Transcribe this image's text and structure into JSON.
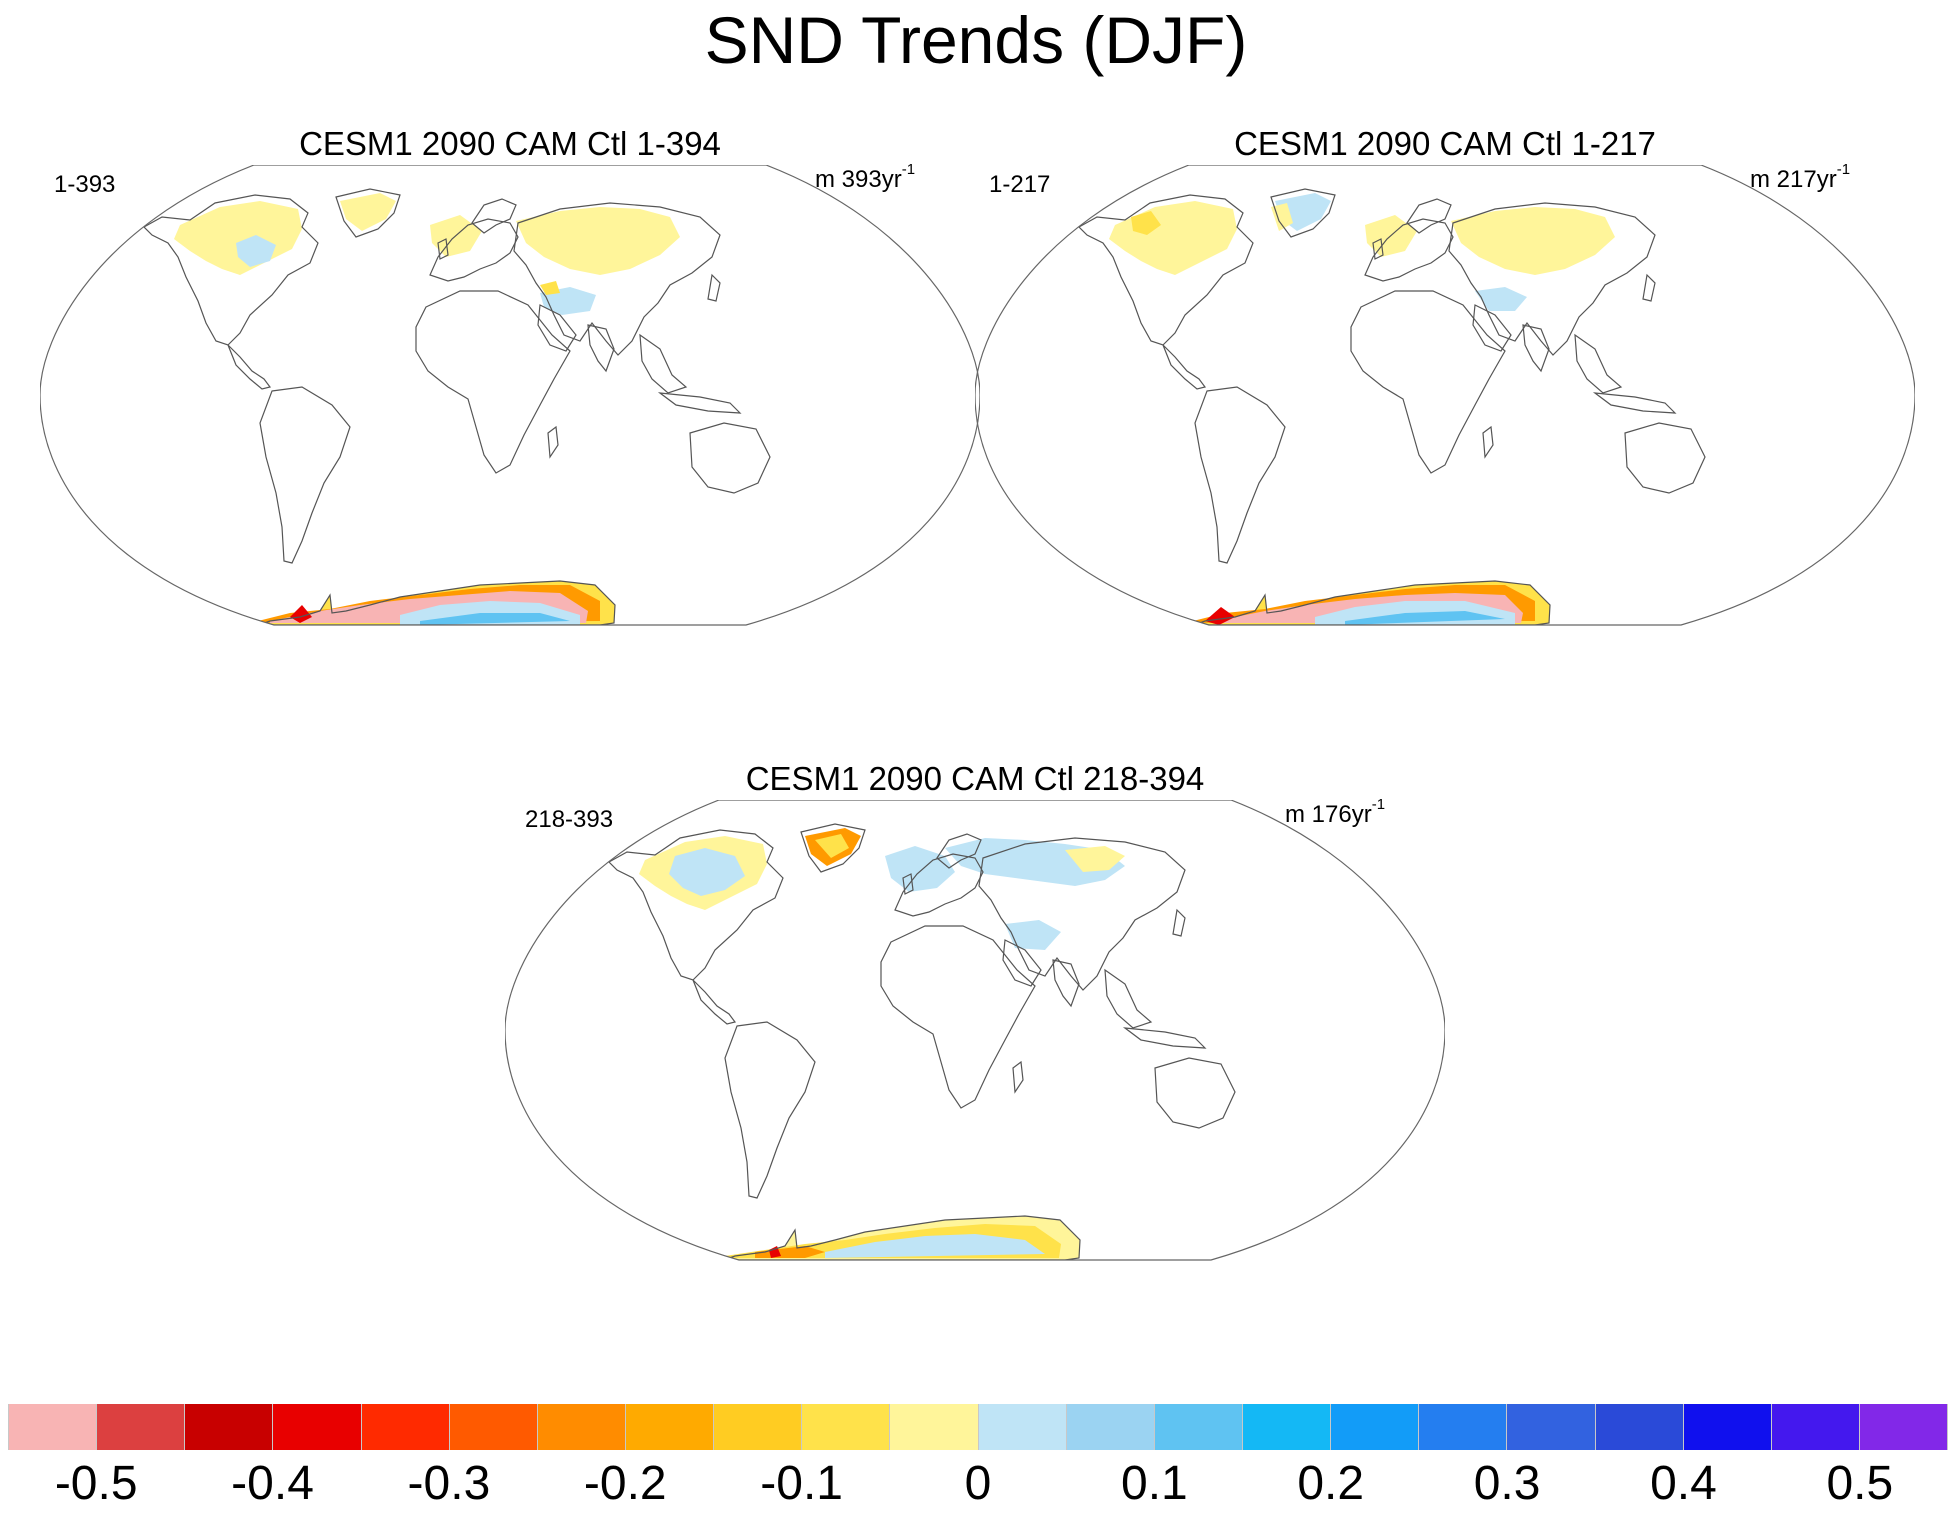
{
  "title": "SND Trends (DJF)",
  "panels": [
    {
      "title": "CESM1 2090 CAM Ctl 1-394",
      "left_label": "1-393",
      "right_label": "m 393yr",
      "right_sup": "-1"
    },
    {
      "title": "CESM1 2090 CAM Ctl 1-217",
      "left_label": "1-217",
      "right_label": "m 217yr",
      "right_sup": "-1"
    },
    {
      "title": "CESM1 2090 CAM Ctl 218-394",
      "left_label": "218-393",
      "right_label": "m 176yr",
      "right_sup": "-1"
    }
  ],
  "colorbar": {
    "colors": [
      "#f8b4b4",
      "#dc4040",
      "#c80000",
      "#e80000",
      "#ff2a00",
      "#ff5a00",
      "#ff8c00",
      "#ffaa00",
      "#ffcc22",
      "#ffe24a",
      "#fff59a",
      "#bfe4f6",
      "#9bd3f2",
      "#5fc3f2",
      "#14b8f5",
      "#129cf8",
      "#247ef0",
      "#3262e0",
      "#2a4ad8",
      "#1010ee",
      "#4418ee",
      "#8228e8"
    ],
    "labels": [
      "-0.5",
      "-0.4",
      "-0.3",
      "-0.2",
      "-0.1",
      "0",
      "0.1",
      "0.2",
      "0.3",
      "0.4",
      "0.5"
    ]
  },
  "colors": {
    "light_yellow": "#fff59a",
    "yellow": "#ffe24a",
    "orange": "#ff9a00",
    "red": "#e80000",
    "pink": "#f8b4b4",
    "light_blue": "#bfe4f6",
    "blue": "#5fc3f2",
    "dark_blue": "#247ef0"
  }
}
